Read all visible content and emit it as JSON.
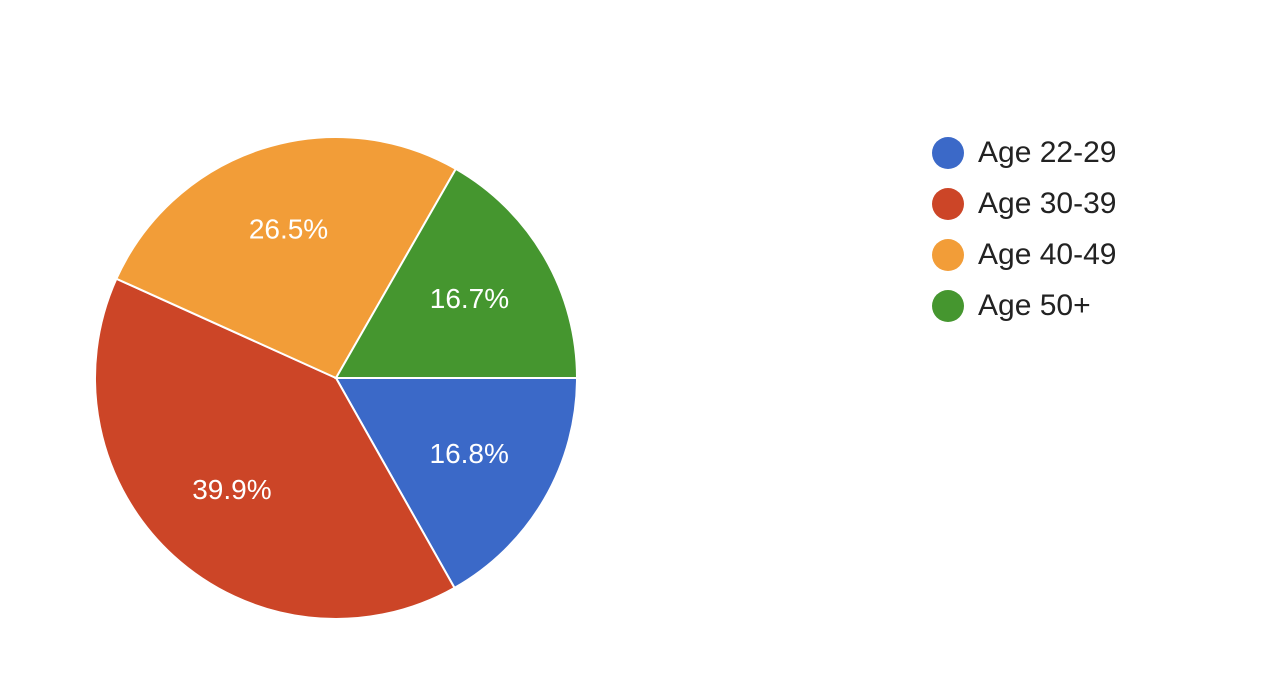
{
  "chart_data": {
    "type": "pie",
    "categories": [
      "Age 22-29",
      "Age 30-39",
      "Age 40-49",
      "Age 50+"
    ],
    "values": [
      16.8,
      39.9,
      26.5,
      16.7
    ],
    "value_labels": [
      "16.8%",
      "39.9%",
      "26.5%",
      "16.7%"
    ],
    "colors": [
      "#3b69c8",
      "#cc4527",
      "#f29d38",
      "#45962f"
    ],
    "legend": "right"
  }
}
